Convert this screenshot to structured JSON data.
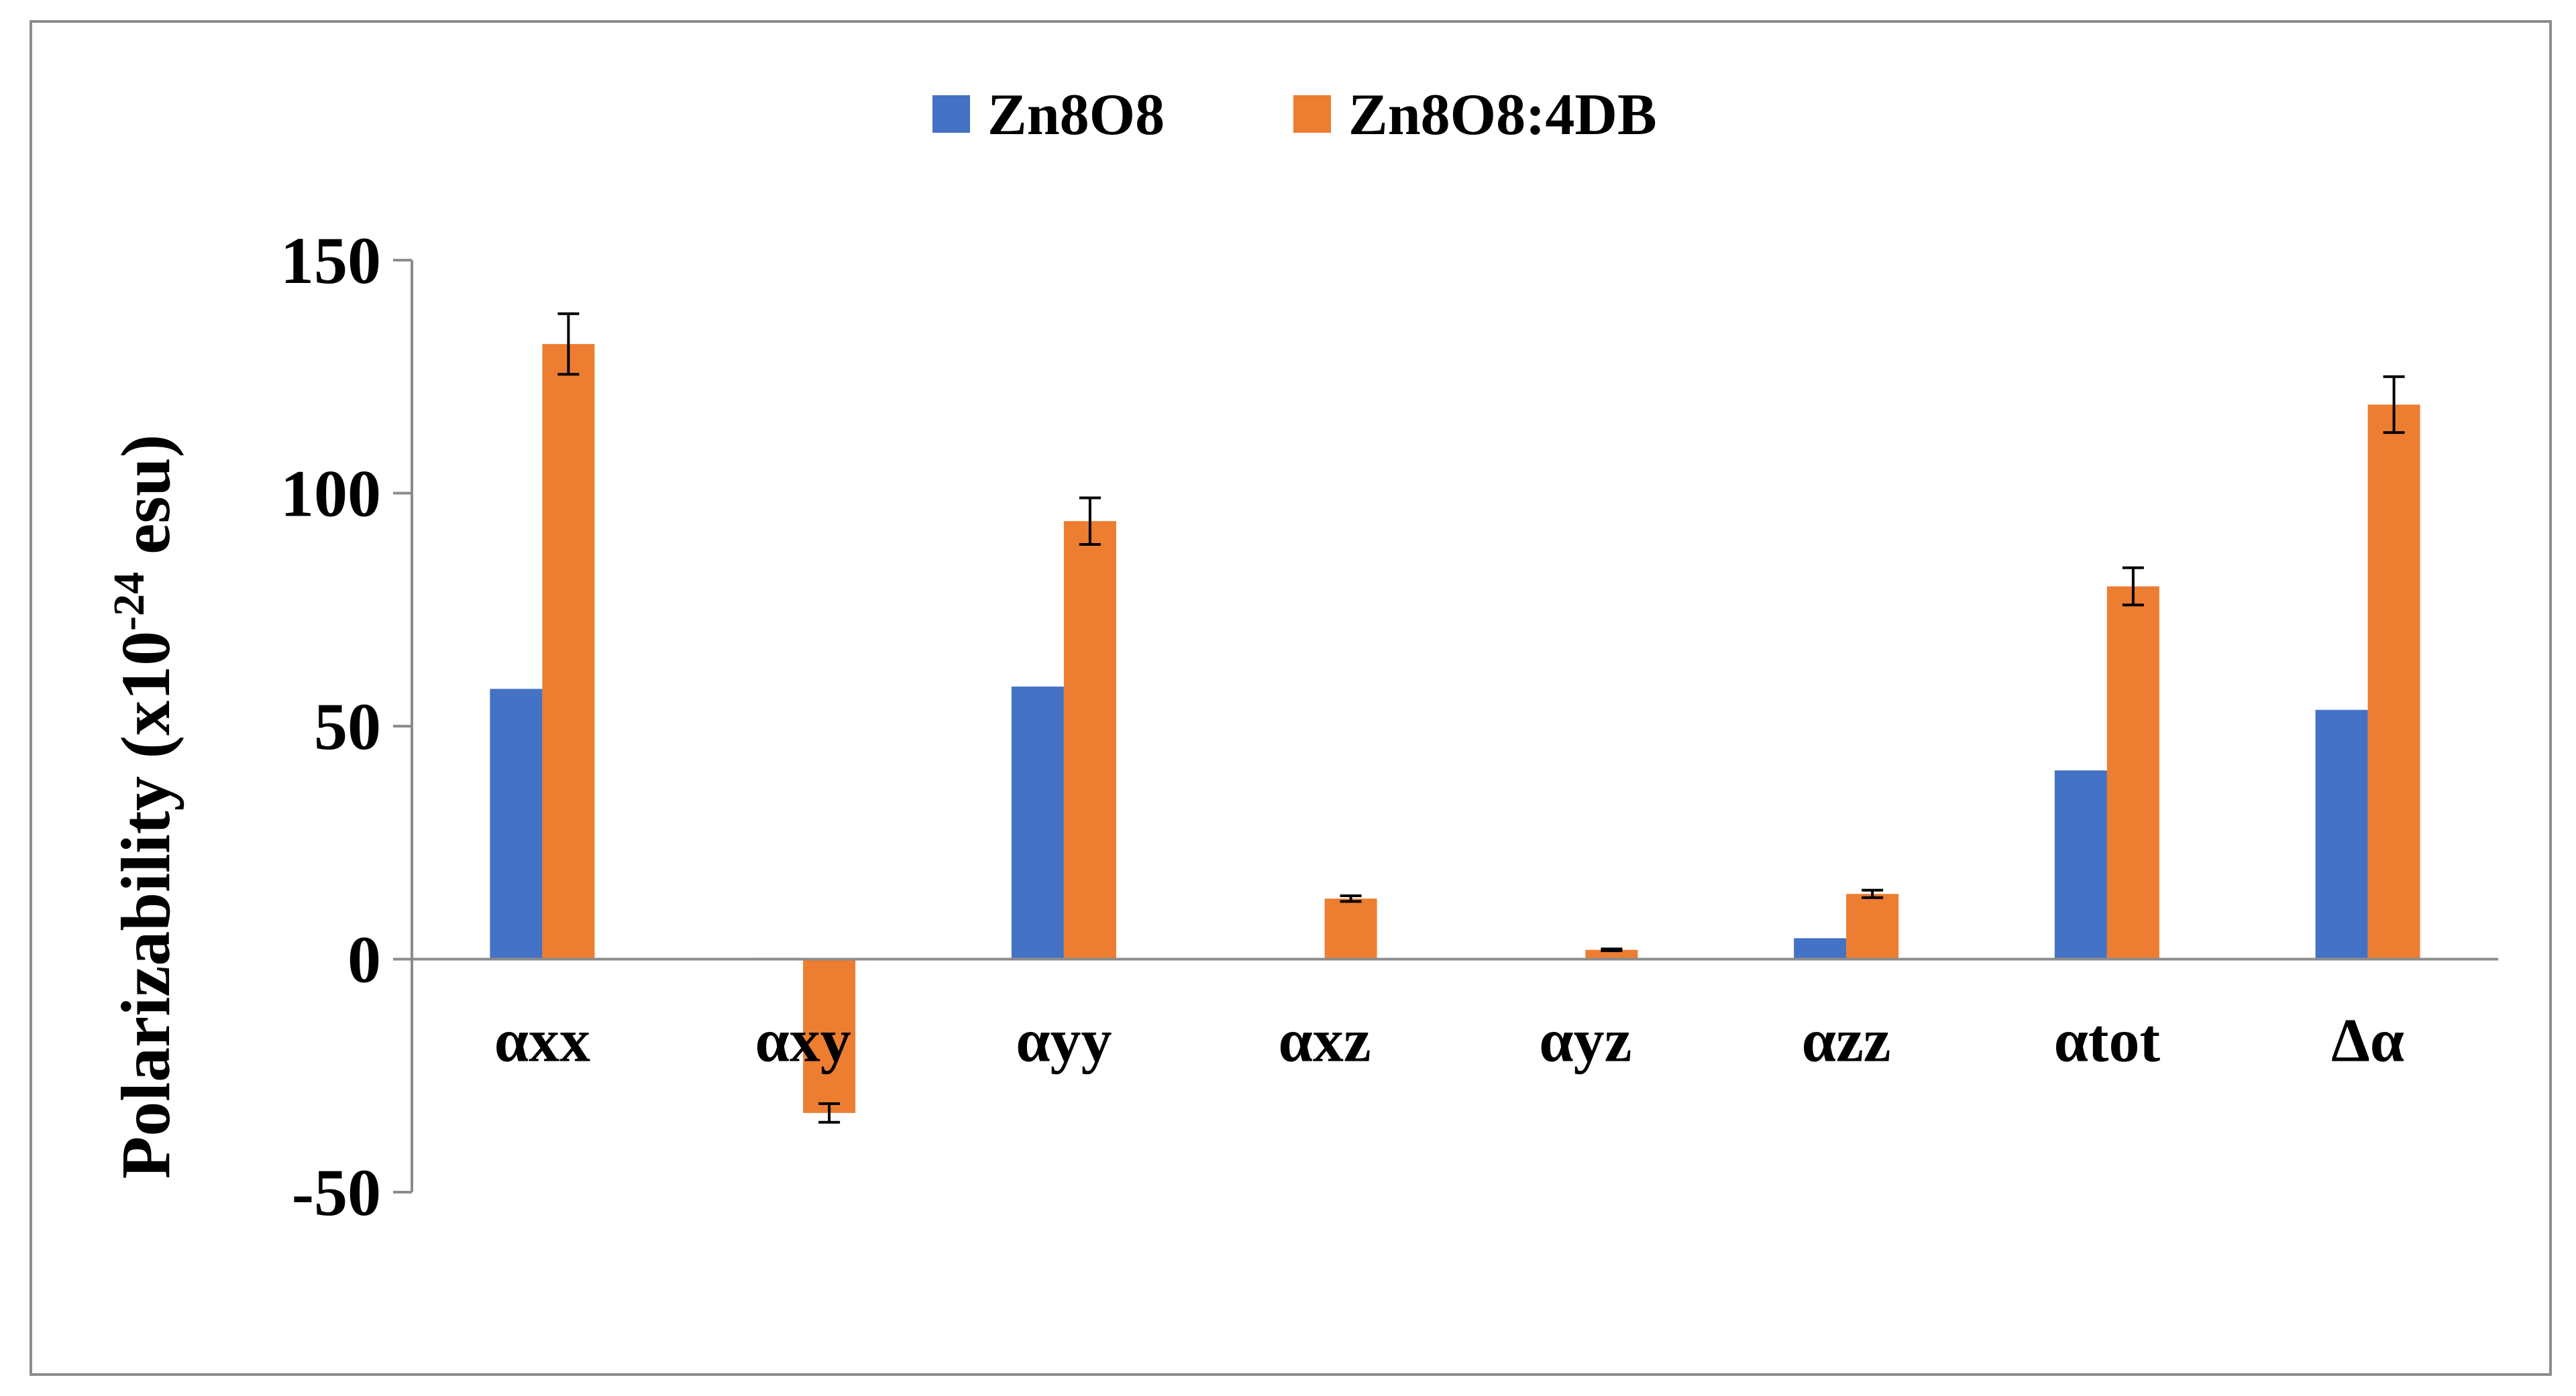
{
  "chart_data": {
    "type": "bar",
    "ylabel_main": "Polarizability  (x10",
    "ylabel_exp": "-24",
    "ylabel_tail": " esu)",
    "categories": [
      "αxx",
      "αxy",
      "αyy",
      "αxz",
      "αyz",
      "αzz",
      "αtot",
      "Δα"
    ],
    "series": [
      {
        "name": "Zn8O8",
        "color": "#4472C4",
        "values": [
          58,
          0.3,
          58.5,
          0,
          0,
          4.5,
          40.5,
          53.5
        ],
        "errors": [
          0,
          0,
          0,
          0,
          0,
          0,
          0,
          0
        ]
      },
      {
        "name": "Zn8O8:4DB",
        "color": "#ED7D31",
        "values": [
          132,
          -33,
          94,
          13,
          2,
          14,
          80,
          119
        ],
        "errors": [
          6.5,
          2,
          5,
          0.6,
          0.2,
          0.8,
          4,
          6
        ]
      }
    ],
    "yticks": [
      -50,
      0,
      50,
      100,
      150
    ],
    "ylim": [
      -50,
      150
    ],
    "grid": false,
    "legend_position": "top-center"
  }
}
